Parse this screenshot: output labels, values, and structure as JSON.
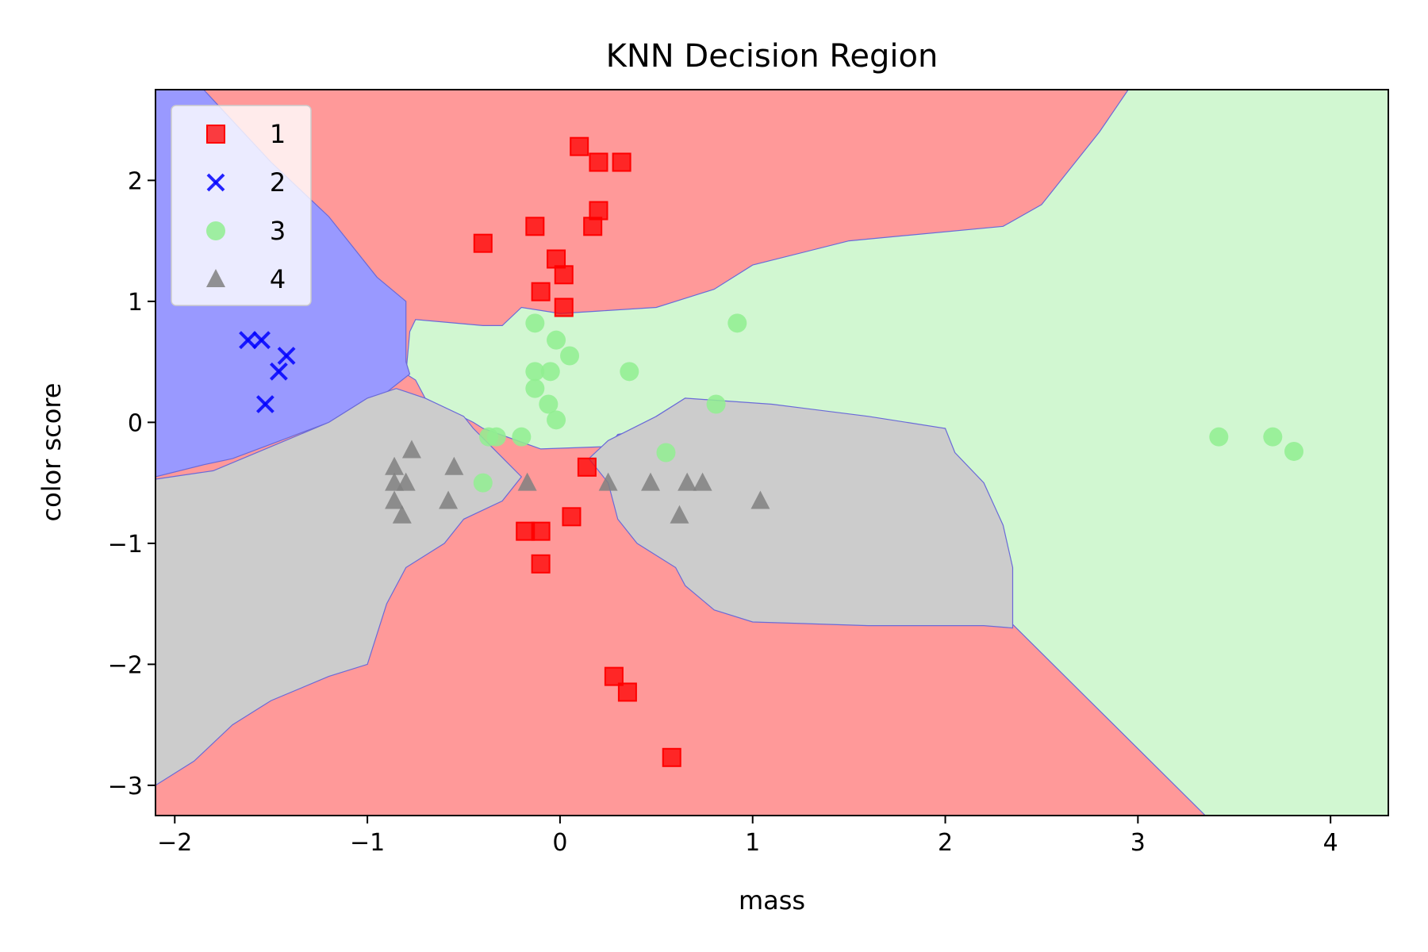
{
  "chart_data": {
    "type": "scatter",
    "title": "KNN Decision Region",
    "xlabel": "mass",
    "ylabel": "color score",
    "xlim": [
      -2.1,
      4.3
    ],
    "ylim": [
      -3.25,
      2.75
    ],
    "xticks": [
      -2,
      -1,
      0,
      1,
      2,
      3,
      4
    ],
    "xtick_labels": [
      "−2",
      "−1",
      "0",
      "1",
      "2",
      "3",
      "4"
    ],
    "yticks": [
      -3,
      -2,
      -1,
      0,
      1,
      2
    ],
    "ytick_labels": [
      "−3",
      "−2",
      "−1",
      "0",
      "1",
      "2"
    ],
    "grid": false,
    "legend_position": "top-left",
    "regions": [
      {
        "class": "1",
        "color": "#ff9999",
        "polygon": [
          [
            -2.1,
            2.75
          ],
          [
            4.3,
            2.75
          ],
          [
            4.3,
            -3.25
          ],
          [
            -2.1,
            -3.25
          ]
        ]
      },
      {
        "class": "3",
        "color": "#d1f7d1",
        "polygon": [
          [
            2.95,
            2.75
          ],
          [
            4.3,
            2.75
          ],
          [
            4.3,
            -3.25
          ],
          [
            3.35,
            -3.25
          ],
          [
            2.35,
            -1.67
          ],
          [
            2.3,
            -1.4
          ],
          [
            2.22,
            -0.7
          ],
          [
            2.0,
            -0.25
          ],
          [
            2.0,
            -0.05
          ],
          [
            1.6,
            0.0
          ],
          [
            1.1,
            0.05
          ],
          [
            0.65,
            0.2
          ],
          [
            0.5,
            0.05
          ],
          [
            0.48,
            -0.05
          ],
          [
            0.3,
            -0.1
          ],
          [
            0.25,
            -0.2
          ],
          [
            -0.1,
            -0.22
          ],
          [
            -0.4,
            -0.05
          ],
          [
            -0.45,
            0.0
          ],
          [
            -0.7,
            0.2
          ],
          [
            -0.75,
            0.35
          ],
          [
            -0.8,
            0.4
          ],
          [
            -0.78,
            0.75
          ],
          [
            -0.75,
            0.85
          ],
          [
            -0.4,
            0.8
          ],
          [
            -0.3,
            0.8
          ],
          [
            -0.2,
            0.95
          ],
          [
            0.0,
            0.9
          ],
          [
            0.2,
            0.92
          ],
          [
            0.5,
            0.95
          ],
          [
            0.8,
            1.1
          ],
          [
            1.0,
            1.3
          ],
          [
            1.5,
            1.5
          ],
          [
            2.3,
            1.62
          ],
          [
            2.5,
            1.8
          ],
          [
            2.6,
            2.0
          ],
          [
            2.8,
            2.4
          ]
        ]
      },
      {
        "class": "2",
        "color": "#9999ff",
        "polygon": [
          [
            -2.1,
            2.75
          ],
          [
            -1.85,
            2.75
          ],
          [
            -1.5,
            2.15
          ],
          [
            -1.2,
            1.7
          ],
          [
            -0.95,
            1.2
          ],
          [
            -0.8,
            1.0
          ],
          [
            -0.8,
            0.5
          ],
          [
            -0.78,
            0.4
          ],
          [
            -0.9,
            0.25
          ],
          [
            -1.0,
            0.2
          ],
          [
            -1.2,
            0.0
          ],
          [
            -1.5,
            -0.18
          ],
          [
            -1.7,
            -0.3
          ],
          [
            -1.85,
            -0.35
          ],
          [
            -2.1,
            -0.45
          ]
        ]
      },
      {
        "class": "4",
        "color": "#cccccc",
        "polygon": [
          [
            -2.1,
            -0.47
          ],
          [
            -1.8,
            -0.4
          ],
          [
            -1.5,
            -0.2
          ],
          [
            -1.2,
            0.0
          ],
          [
            -1.0,
            0.2
          ],
          [
            -0.85,
            0.28
          ],
          [
            -0.7,
            0.2
          ],
          [
            -0.5,
            0.05
          ],
          [
            -0.45,
            -0.05
          ],
          [
            -0.2,
            -0.45
          ],
          [
            -0.3,
            -0.65
          ],
          [
            -0.5,
            -0.8
          ],
          [
            -0.6,
            -1.0
          ],
          [
            -0.8,
            -1.2
          ],
          [
            -0.9,
            -1.5
          ],
          [
            -1.0,
            -2.0
          ],
          [
            -1.2,
            -2.1
          ],
          [
            -1.5,
            -2.3
          ],
          [
            -1.7,
            -2.5
          ],
          [
            -1.9,
            -2.8
          ],
          [
            -2.1,
            -3.0
          ]
        ]
      },
      {
        "class": "4",
        "color": "#cccccc",
        "polygon": [
          [
            0.25,
            -0.15
          ],
          [
            0.5,
            0.05
          ],
          [
            0.65,
            0.2
          ],
          [
            1.1,
            0.15
          ],
          [
            1.6,
            0.05
          ],
          [
            2.0,
            -0.05
          ],
          [
            2.05,
            -0.25
          ],
          [
            2.2,
            -0.5
          ],
          [
            2.3,
            -0.85
          ],
          [
            2.35,
            -1.2
          ],
          [
            2.35,
            -1.7
          ],
          [
            2.2,
            -1.68
          ],
          [
            1.6,
            -1.68
          ],
          [
            1.0,
            -1.65
          ],
          [
            0.8,
            -1.55
          ],
          [
            0.65,
            -1.35
          ],
          [
            0.6,
            -1.2
          ],
          [
            0.4,
            -1.0
          ],
          [
            0.3,
            -0.8
          ],
          [
            0.25,
            -0.5
          ],
          [
            0.15,
            -0.3
          ]
        ]
      }
    ],
    "series": [
      {
        "name": "1",
        "marker": "square",
        "color": "#ff0000",
        "points": [
          [
            0.1,
            2.28
          ],
          [
            0.2,
            2.15
          ],
          [
            0.32,
            2.15
          ],
          [
            0.2,
            1.75
          ],
          [
            0.17,
            1.62
          ],
          [
            -0.13,
            1.62
          ],
          [
            -0.4,
            1.48
          ],
          [
            -0.02,
            1.35
          ],
          [
            0.02,
            1.22
          ],
          [
            -0.1,
            1.08
          ],
          [
            0.02,
            0.95
          ],
          [
            0.14,
            -0.37
          ],
          [
            0.06,
            -0.78
          ],
          [
            -0.18,
            -0.9
          ],
          [
            -0.1,
            -0.9
          ],
          [
            -0.1,
            -1.17
          ],
          [
            0.28,
            -2.1
          ],
          [
            0.35,
            -2.23
          ],
          [
            0.58,
            -2.77
          ]
        ]
      },
      {
        "name": "2",
        "marker": "x",
        "color": "#0000ff",
        "points": [
          [
            -1.62,
            0.68
          ],
          [
            -1.55,
            0.68
          ],
          [
            -1.42,
            0.55
          ],
          [
            -1.46,
            0.42
          ],
          [
            -1.53,
            0.15
          ]
        ]
      },
      {
        "name": "3",
        "marker": "circle",
        "color": "#90ee90",
        "points": [
          [
            -0.13,
            0.82
          ],
          [
            0.92,
            0.82
          ],
          [
            -0.02,
            0.68
          ],
          [
            0.05,
            0.55
          ],
          [
            -0.13,
            0.42
          ],
          [
            -0.05,
            0.42
          ],
          [
            0.36,
            0.42
          ],
          [
            -0.13,
            0.28
          ],
          [
            -0.06,
            0.15
          ],
          [
            0.81,
            0.15
          ],
          [
            -0.02,
            0.02
          ],
          [
            -0.37,
            -0.12
          ],
          [
            -0.33,
            -0.12
          ],
          [
            -0.2,
            -0.12
          ],
          [
            0.55,
            -0.25
          ],
          [
            -0.4,
            -0.5
          ],
          [
            3.42,
            -0.12
          ],
          [
            3.7,
            -0.12
          ],
          [
            3.81,
            -0.24
          ]
        ]
      },
      {
        "name": "4",
        "marker": "triangle",
        "color": "#808080",
        "points": [
          [
            -0.77,
            -0.23
          ],
          [
            -0.86,
            -0.37
          ],
          [
            -0.55,
            -0.37
          ],
          [
            -0.86,
            -0.5
          ],
          [
            -0.8,
            -0.5
          ],
          [
            -0.17,
            -0.5
          ],
          [
            0.25,
            -0.5
          ],
          [
            0.47,
            -0.5
          ],
          [
            0.66,
            -0.5
          ],
          [
            0.74,
            -0.5
          ],
          [
            -0.86,
            -0.65
          ],
          [
            -0.58,
            -0.65
          ],
          [
            1.04,
            -0.65
          ],
          [
            -0.82,
            -0.77
          ],
          [
            0.62,
            -0.77
          ]
        ]
      }
    ]
  }
}
